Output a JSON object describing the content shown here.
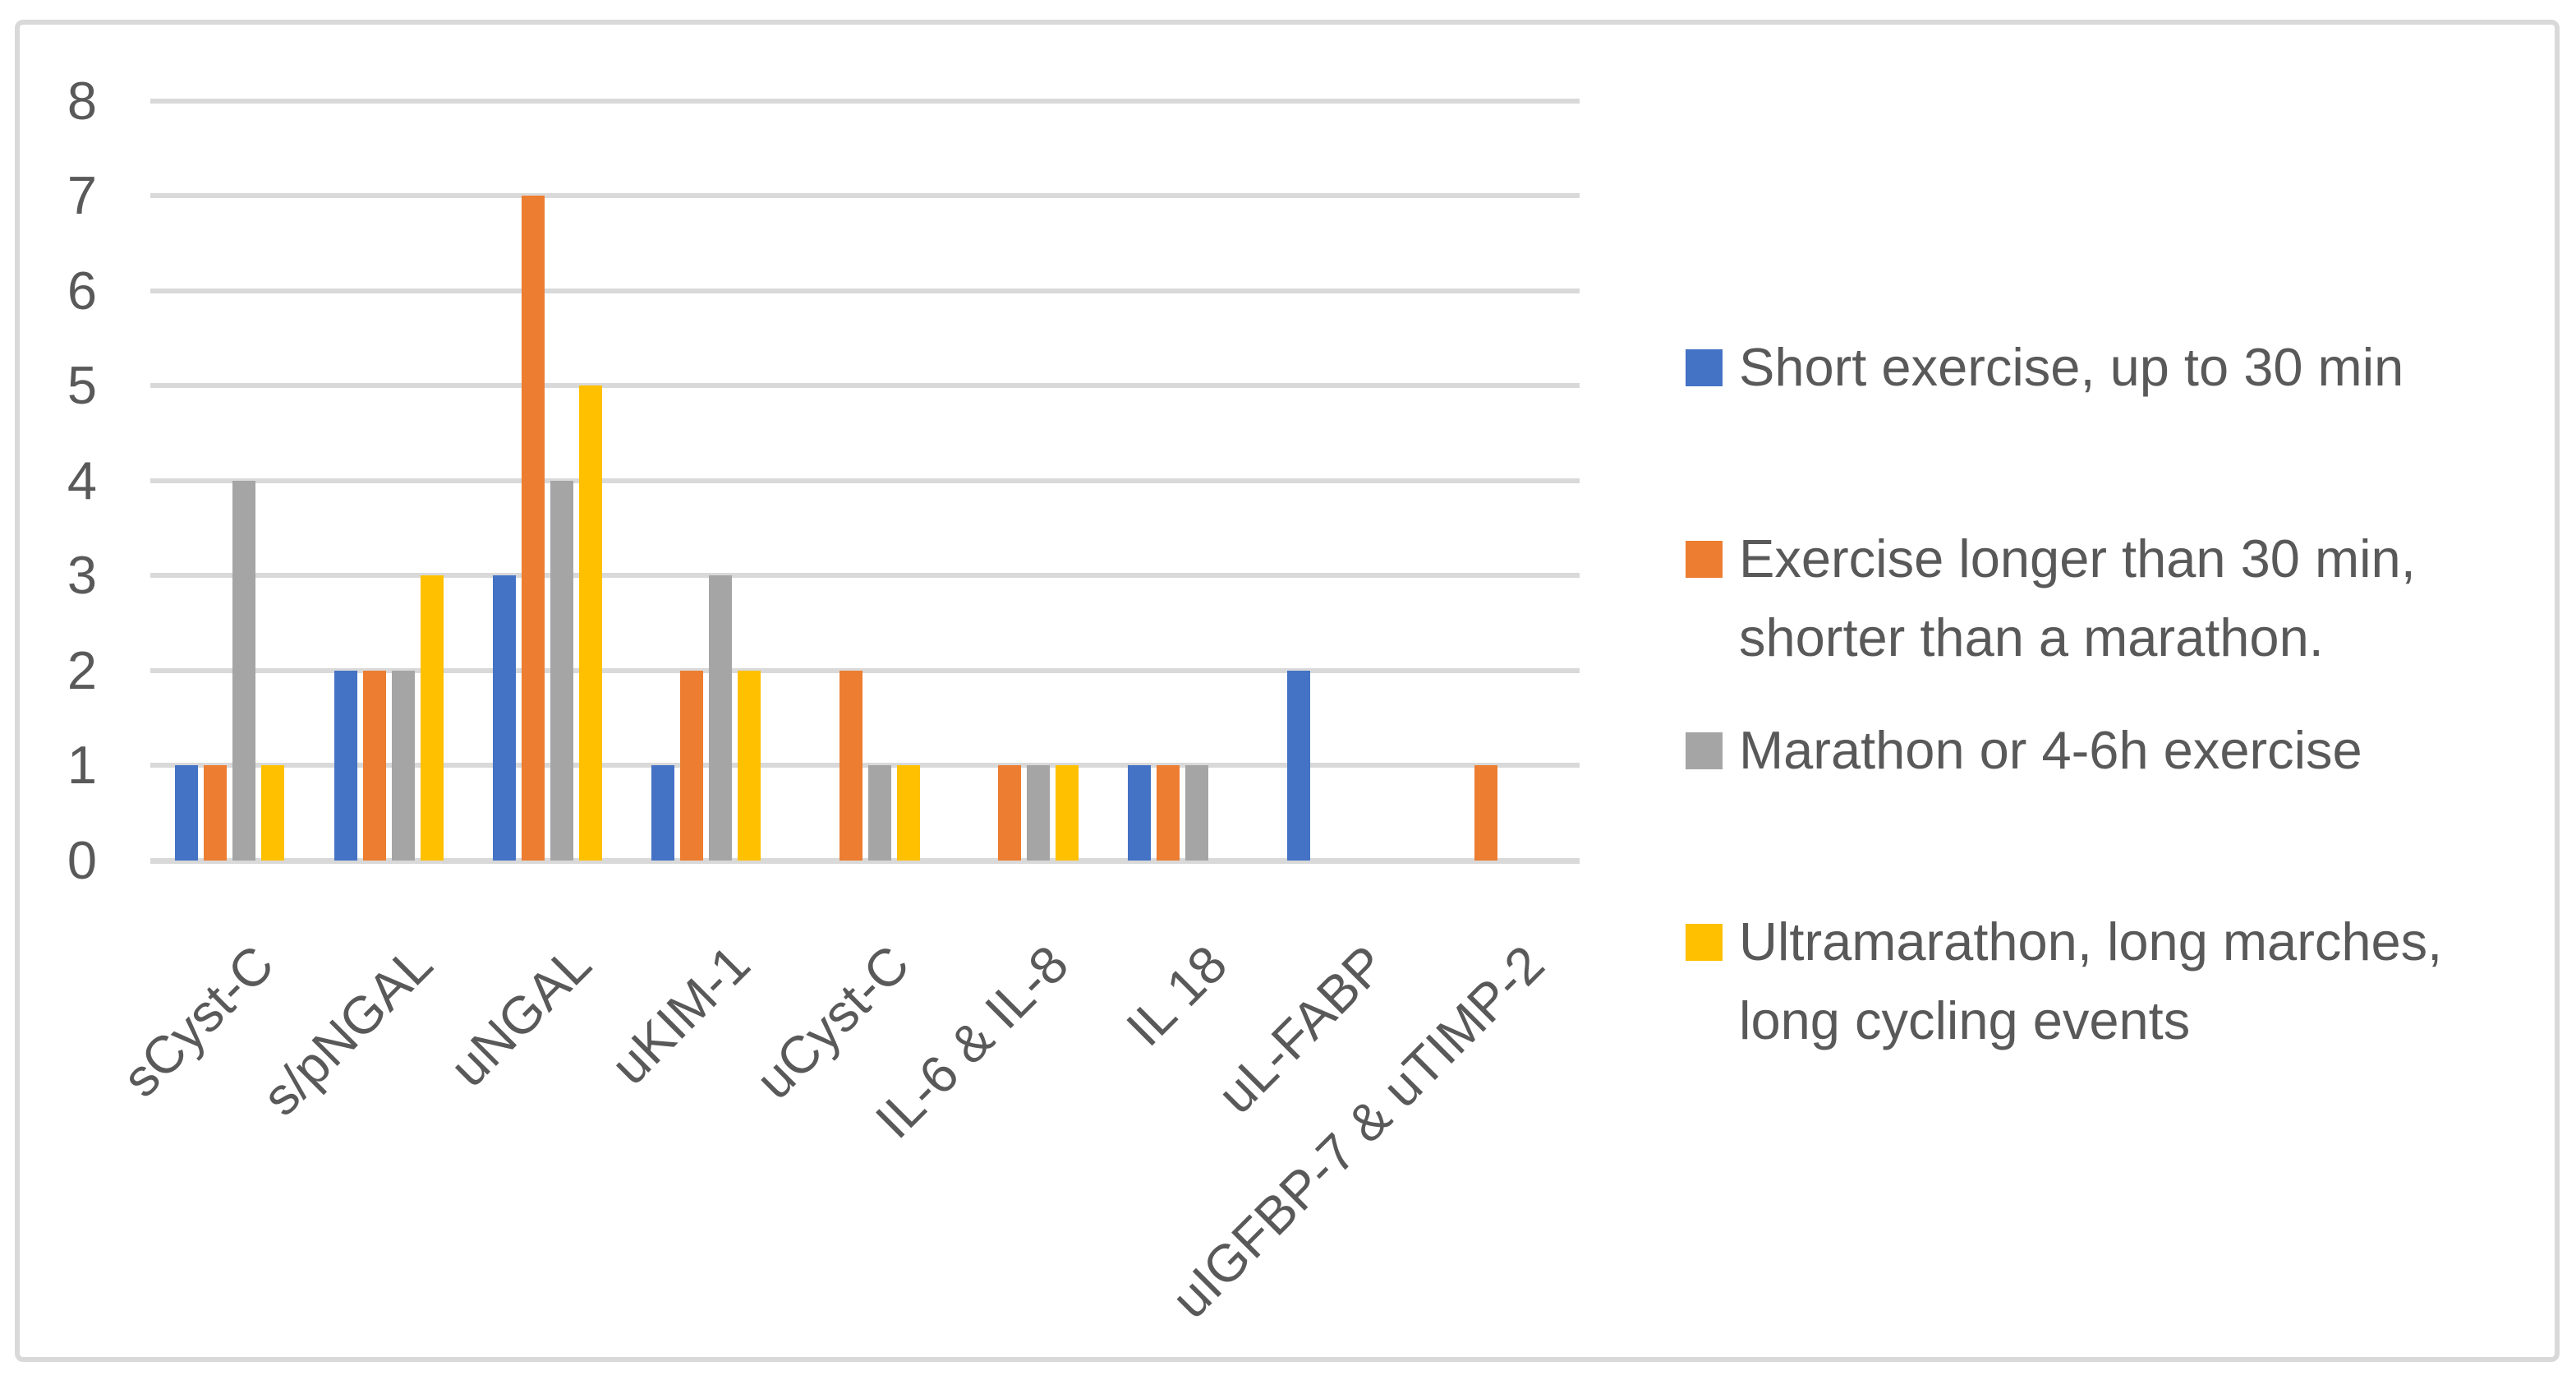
{
  "figure": {
    "description_visible_text_only": true,
    "background": "#FFFFFF",
    "border_color": "#D9D9D9"
  },
  "chart_data": {
    "type": "bar",
    "title": "",
    "xlabel": "",
    "ylabel": "",
    "ylim": [
      0,
      8
    ],
    "y_ticks": [
      "0",
      "1",
      "2",
      "3",
      "4",
      "5",
      "6",
      "7",
      "8"
    ],
    "grid": "horizontal",
    "gridline_color": "#D9D9D9",
    "axis_text_color": "#595959",
    "legend_position": "right",
    "categories": [
      "sCyst-C",
      "s/pNGAL",
      "uNGAL",
      "uKIM-1",
      "uCyst-C",
      "IL-6 & IL-8",
      "IL 18",
      "uL-FABP",
      "uIGFBP-7 & uTIMP-2"
    ],
    "series": [
      {
        "name": "Short exercise, up to 30 min",
        "color": "#4472C4",
        "values": [
          1,
          2,
          3,
          1,
          0,
          0,
          1,
          2,
          0
        ]
      },
      {
        "name": "Exercise longer than 30 min,\nshorter than a marathon.",
        "color": "#ED7D31",
        "values": [
          1,
          2,
          7,
          2,
          2,
          1,
          1,
          0,
          1
        ]
      },
      {
        "name": "Marathon or 4-6h exercise",
        "color": "#A5A5A5",
        "values": [
          4,
          2,
          4,
          3,
          1,
          1,
          1,
          0,
          0
        ]
      },
      {
        "name": "Ultramarathon, long marches,\nlong cycling events",
        "color": "#FFC000",
        "values": [
          1,
          3,
          5,
          2,
          1,
          1,
          0,
          0,
          0
        ]
      }
    ]
  }
}
